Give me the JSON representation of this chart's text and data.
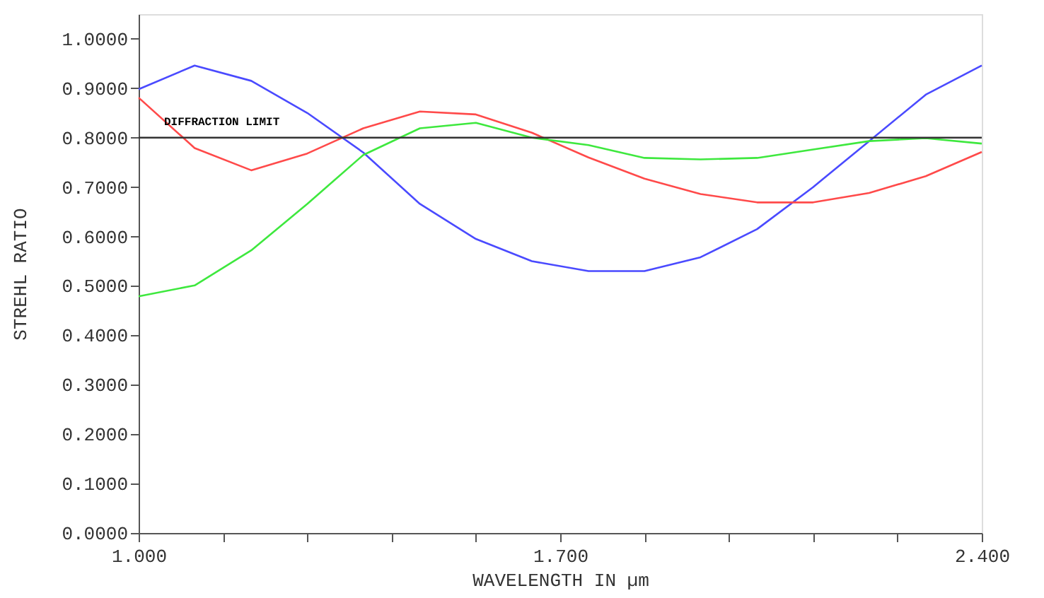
{
  "chart_data": {
    "type": "line",
    "xlabel": "WAVELENGTH IN µm",
    "ylabel": "STREHL RATIO",
    "x": [
      1.0,
      1.093,
      1.187,
      1.28,
      1.373,
      1.467,
      1.56,
      1.653,
      1.747,
      1.84,
      1.933,
      2.027,
      2.12,
      2.213,
      2.307,
      2.4
    ],
    "series": [
      {
        "color": "#4a4aff",
        "values": [
          0.898,
          0.946,
          0.915,
          0.85,
          0.77,
          0.666,
          0.595,
          0.55,
          0.53,
          0.53,
          0.558,
          0.615,
          0.7,
          0.793,
          0.887,
          0.946
        ]
      },
      {
        "color": "#ff4a4a",
        "values": [
          0.881,
          0.779,
          0.734,
          0.768,
          0.819,
          0.853,
          0.847,
          0.81,
          0.76,
          0.717,
          0.686,
          0.669,
          0.669,
          0.688,
          0.722,
          0.771
        ]
      },
      {
        "color": "#3ee83e",
        "values": [
          0.479,
          0.501,
          0.572,
          0.666,
          0.765,
          0.819,
          0.83,
          0.8,
          0.785,
          0.759,
          0.756,
          0.759,
          0.776,
          0.793,
          0.799,
          0.788
        ]
      }
    ],
    "ref_lines": [
      {
        "axis": "y",
        "value": 0.8,
        "label": "DIFFRACTION LIMIT",
        "color": "#333333"
      }
    ],
    "xlim": [
      1.0,
      2.4
    ],
    "ylim": [
      0,
      1.05
    ],
    "xticks": [
      {
        "value": 1.0,
        "label": "1.000"
      },
      {
        "value": 1.14,
        "label": null
      },
      {
        "value": 1.28,
        "label": null
      },
      {
        "value": 1.42,
        "label": null
      },
      {
        "value": 1.56,
        "label": null
      },
      {
        "value": 1.7,
        "label": "1.700"
      },
      {
        "value": 1.84,
        "label": null
      },
      {
        "value": 1.98,
        "label": null
      },
      {
        "value": 2.12,
        "label": null
      },
      {
        "value": 2.26,
        "label": null
      },
      {
        "value": 2.4,
        "label": "2.400"
      }
    ],
    "yticks": [
      {
        "value": 0,
        "label": "0.0000"
      },
      {
        "value": 0.1,
        "label": "0.1000"
      },
      {
        "value": 0.2,
        "label": "0.2000"
      },
      {
        "value": 0.3,
        "label": "0.3000"
      },
      {
        "value": 0.4,
        "label": "0.4000"
      },
      {
        "value": 0.5,
        "label": "0.5000"
      },
      {
        "value": 0.6,
        "label": "0.6000"
      },
      {
        "value": 0.7,
        "label": "0.7000"
      },
      {
        "value": 0.8,
        "label": "0.8000"
      },
      {
        "value": 0.9,
        "label": "0.9000"
      },
      {
        "value": 1.0,
        "label": "1.0000"
      }
    ],
    "grid": false,
    "marker": "none",
    "line_style": "solid"
  }
}
